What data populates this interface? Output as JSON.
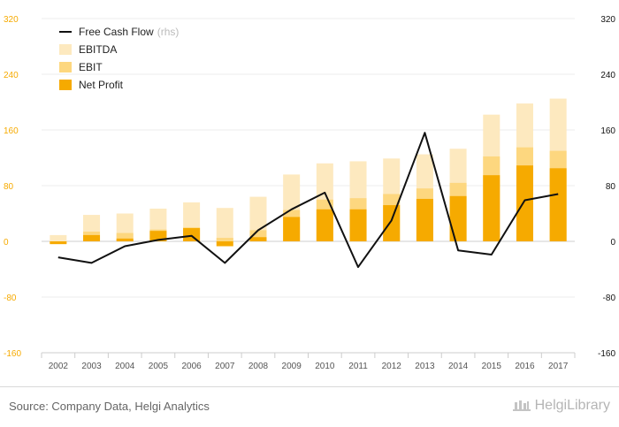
{
  "chart_data": {
    "type": "bar",
    "categories": [
      "2002",
      "2003",
      "2004",
      "2005",
      "2006",
      "2007",
      "2008",
      "2009",
      "2010",
      "2011",
      "2012",
      "2013",
      "2014",
      "2015",
      "2016",
      "2017"
    ],
    "series": [
      {
        "name": "EBITDA",
        "chart": "bar",
        "color": "#fde9bf",
        "values": [
          9,
          38,
          40,
          47,
          56,
          48,
          64,
          96,
          112,
          115,
          119,
          125,
          133,
          182,
          198,
          205
        ]
      },
      {
        "name": "EBIT",
        "chart": "bar",
        "color": "#fdd77f",
        "values": [
          -2,
          14,
          12,
          17,
          20,
          5,
          16,
          45,
          60,
          62,
          68,
          76,
          84,
          122,
          135,
          130
        ]
      },
      {
        "name": "Net Profit",
        "chart": "bar",
        "color": "#f6aa00",
        "values": [
          -4,
          9,
          4,
          15,
          19,
          -7,
          6,
          35,
          46,
          46,
          52,
          61,
          65,
          95,
          109,
          105
        ]
      },
      {
        "name": "Free Cash Flow",
        "chart": "line",
        "axis": "right",
        "color": "#111111",
        "values": [
          -23,
          -31,
          -7,
          2,
          8,
          -31,
          16,
          46,
          70,
          -37,
          30,
          156,
          -13,
          -19,
          59,
          68
        ]
      }
    ],
    "y_left": {
      "ticks": [
        "320",
        "240",
        "160",
        "80",
        "0",
        "-80",
        "-160"
      ],
      "lim": [
        -160,
        320
      ]
    },
    "y_right": {
      "ticks": [
        "320",
        "240",
        "160",
        "80",
        "0",
        "-80",
        "-160"
      ],
      "lim": [
        -160,
        320
      ]
    },
    "legend": {
      "position": "top-left",
      "items": [
        {
          "label": "Free Cash Flow",
          "note": "(rhs)",
          "marker": "line",
          "color": "#111111"
        },
        {
          "label": "EBITDA",
          "marker": "box",
          "color": "#fde9bf"
        },
        {
          "label": "EBIT",
          "marker": "box",
          "color": "#fdd77f"
        },
        {
          "label": "Net Profit",
          "marker": "box",
          "color": "#f6aa00"
        }
      ]
    },
    "grid": "horizontal",
    "left_axis_color": "#f6aa00",
    "right_axis_color": "#111111"
  },
  "footer": {
    "source": "Source: Company Data, Helgi Analytics",
    "brand": "HelgiLibrary"
  }
}
